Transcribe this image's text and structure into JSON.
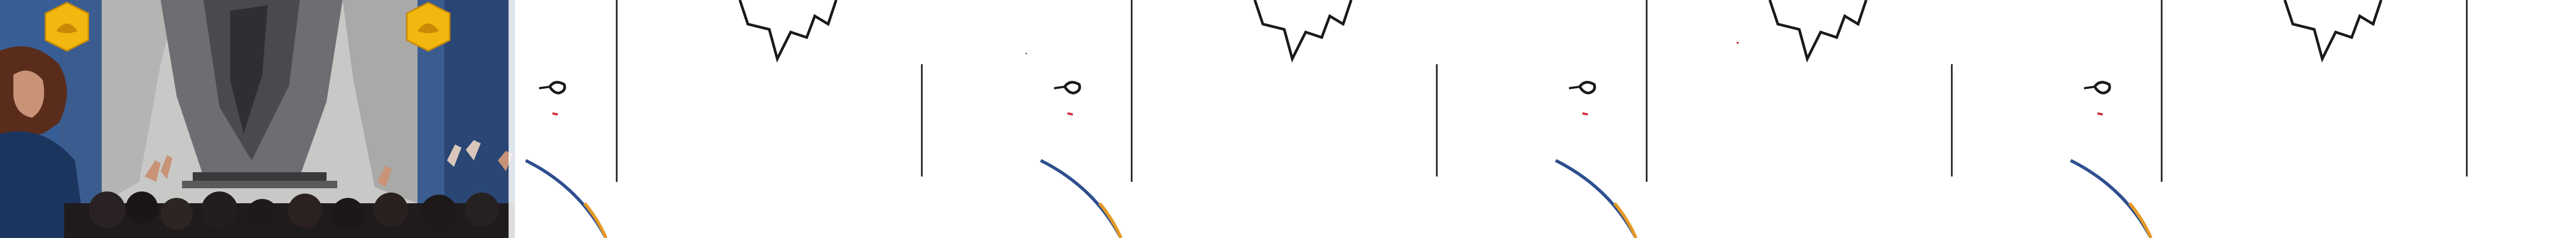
{
  "strip": {
    "frame_count": 5,
    "frames": [
      {
        "scene": "crowd-watching-illuminated-portal"
      },
      {
        "scene": "line-sketch-figure-and-cave"
      },
      {
        "scene": "line-sketch-figure-and-cave"
      },
      {
        "scene": "line-sketch-figure-and-cave"
      },
      {
        "scene": "line-sketch-figure-and-cave"
      }
    ]
  },
  "colors": {
    "background": "#ffffff",
    "night_blue": "#2a4f86",
    "deep_blue": "#1c355e",
    "stone_gray": "#8f9094",
    "stone_light": "#c8c8c6",
    "lantern_gold": "#f2b80f",
    "lantern_dark": "#c98a06",
    "crowd_dark": "#1f1b1c",
    "skin": "#c89377",
    "hair_brown": "#5a2c1b",
    "sketch_black": "#1a1a1a",
    "sketch_blue": "#2e4f8f",
    "sketch_orange": "#e59a24",
    "sketch_red": "#d12a3a"
  },
  "icons": [
    "lantern-lotus-icon"
  ]
}
